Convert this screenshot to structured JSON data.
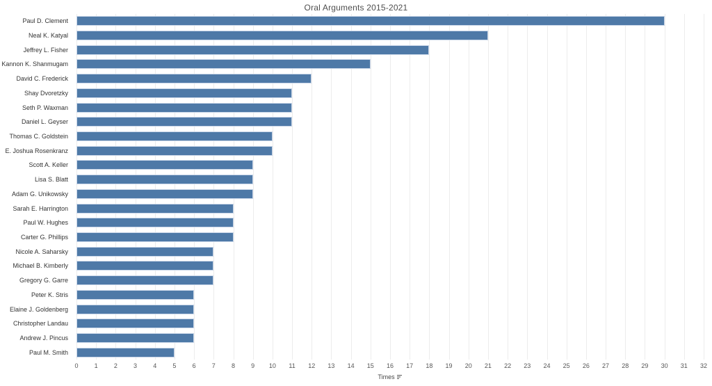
{
  "title": "Oral Arguments 2015-2021",
  "x_axis": {
    "label": "Times",
    "sort_icon": "sort-descending-icon"
  },
  "chart_data": {
    "type": "bar",
    "orientation": "horizontal",
    "title": "Oral Arguments 2015-2021",
    "xlabel": "Times",
    "ylabel": "",
    "xlim": [
      0,
      32
    ],
    "xticks": [
      0,
      1,
      2,
      3,
      4,
      5,
      6,
      7,
      8,
      9,
      10,
      11,
      12,
      13,
      14,
      15,
      16,
      17,
      18,
      19,
      20,
      21,
      22,
      23,
      24,
      25,
      26,
      27,
      28,
      29,
      30,
      31,
      32
    ],
    "grid": true,
    "legend_position": "none",
    "categories": [
      "Paul D. Clement",
      "Neal K. Katyal",
      "Jeffrey L. Fisher",
      "Kannon K. Shanmugam",
      "David C. Frederick",
      "Shay Dvoretzky",
      "Seth P. Waxman",
      "Daniel L. Geyser",
      "Thomas C. Goldstein",
      "E. Joshua Rosenkranz",
      "Scott A. Keller",
      "Lisa S. Blatt",
      "Adam G. Unikowsky",
      "Sarah E. Harrington",
      "Paul W. Hughes",
      "Carter G. Phillips",
      "Nicole A. Saharsky",
      "Michael B. Kimberly",
      "Gregory G. Garre",
      "Peter K. Stris",
      "Elaine J. Goldenberg",
      "Christopher Landau",
      "Andrew J. Pincus",
      "Paul M. Smith"
    ],
    "values": [
      30,
      21,
      18,
      15,
      12,
      11,
      11,
      11,
      10,
      10,
      9,
      9,
      9,
      8,
      8,
      8,
      7,
      7,
      7,
      6,
      6,
      6,
      6,
      5
    ]
  },
  "colors": {
    "bar": "#4e79a7",
    "bar_border": "#c9d6e8",
    "gridline": "#ececec",
    "title_text": "#4e4e4e",
    "tick_text": "#565656",
    "label_text": "#333333"
  }
}
